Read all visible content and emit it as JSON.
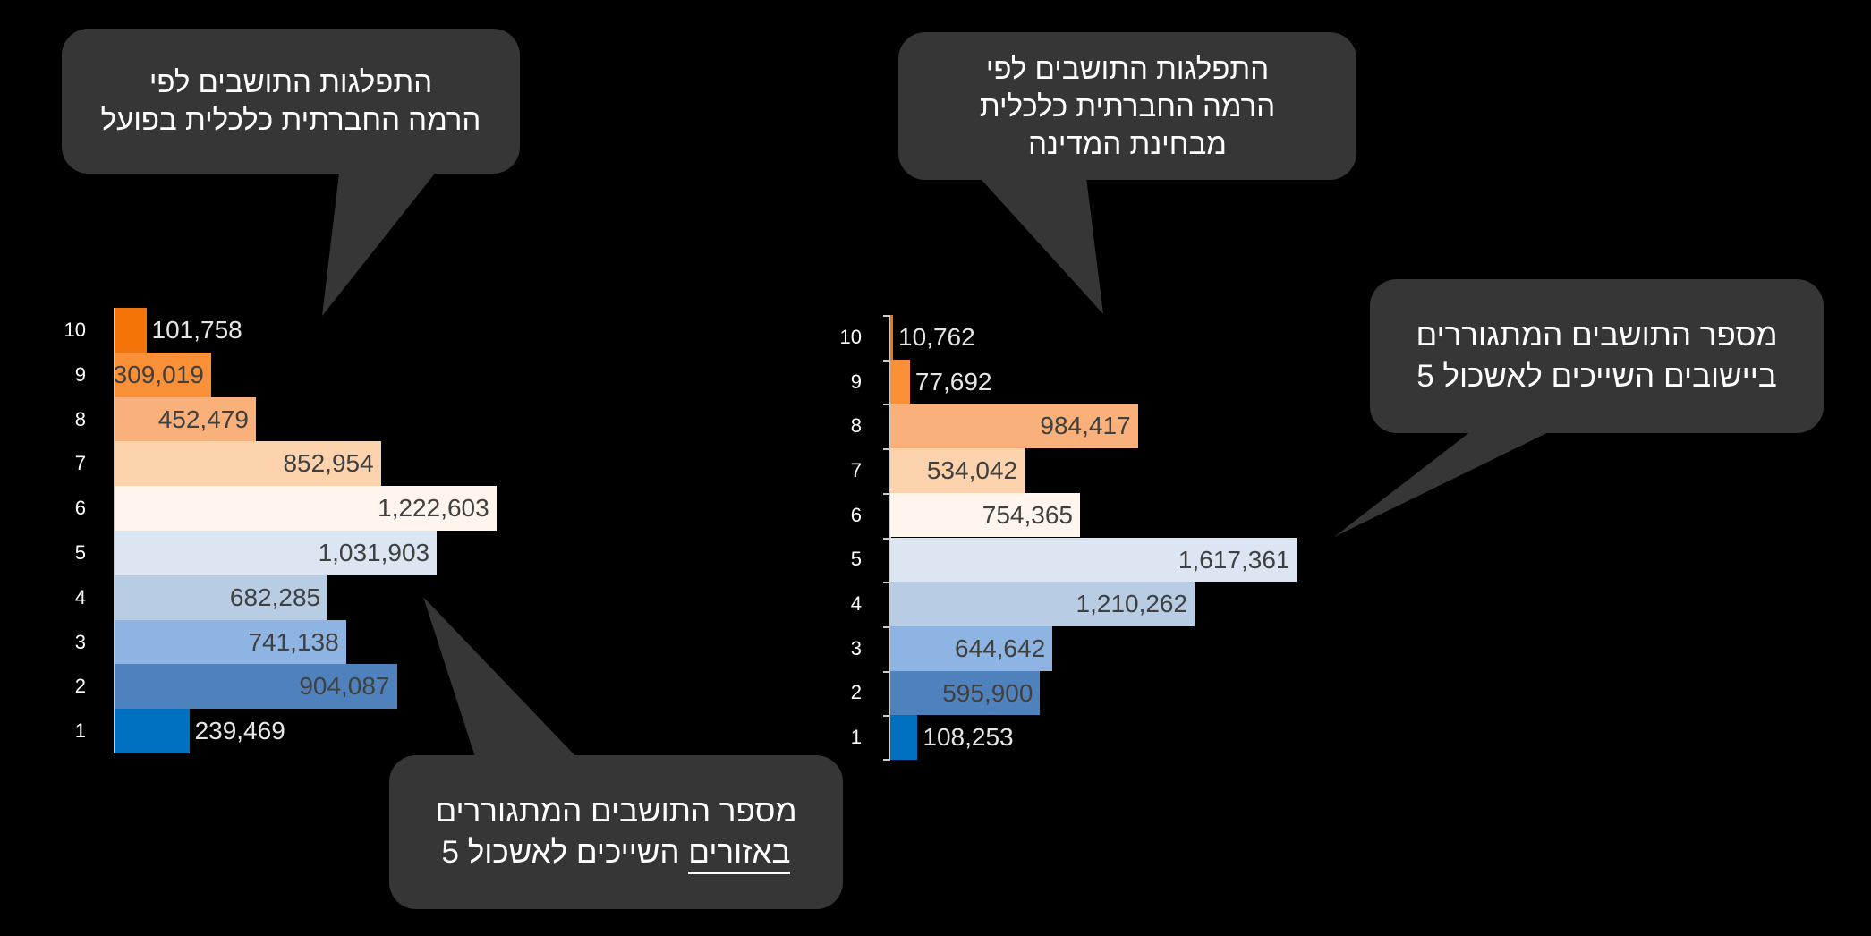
{
  "callouts": {
    "left_top": [
      "התפלגות התושבים לפי",
      "הרמה החברתית כלכלית בפועל"
    ],
    "right_top": [
      "התפלגות התושבים לפי",
      "הרמה החברתית כלכלית",
      "מבחינת המדינה"
    ],
    "left_bottom": {
      "line1": "מספר התושבים המתגוררים",
      "line2_underlined": "באזורים",
      "line2_rest": " השייכים לאשכול 5"
    },
    "right_mid": [
      "מספר התושבים המתגוררים",
      "ביישובים השייכים לאשכול 5"
    ]
  },
  "chart_data": [
    {
      "type": "bar",
      "orientation": "horizontal",
      "title": "התפלגות התושבים לפי הרמה החברתית כלכלית בפועל",
      "categories": [
        "10",
        "9",
        "8",
        "7",
        "6",
        "5",
        "4",
        "3",
        "2",
        "1"
      ],
      "values": [
        101758,
        309019,
        452479,
        852954,
        1222603,
        1031903,
        682285,
        741138,
        904087,
        239469
      ],
      "labels": [
        "101,758",
        "309,019",
        "452,479",
        "852,954",
        "1,222,603",
        "1,031,903",
        "682,285",
        "741,138",
        "904,087",
        "239,469"
      ],
      "colors": [
        "#f57409",
        "#fa9038",
        "#f9b07a",
        "#fdd3ad",
        "#fff5ec",
        "#dce6f2",
        "#b8cce4",
        "#8eb4e3",
        "#4f81bd",
        "#0070c0"
      ]
    },
    {
      "type": "bar",
      "orientation": "horizontal",
      "title": "התפלגות התושבים לפי הרמה החברתית כלכלית מבחינת המדינה",
      "categories": [
        "10",
        "9",
        "8",
        "7",
        "6",
        "5",
        "4",
        "3",
        "2",
        "1"
      ],
      "values": [
        10762,
        77692,
        984417,
        534042,
        754365,
        1617361,
        1210262,
        644642,
        595900,
        108253
      ],
      "labels": [
        "10,762",
        "77,692",
        "984,417",
        "534,042",
        "754,365",
        "1,617,361",
        "1,210,262",
        "644,642",
        "595,900",
        "108,253"
      ],
      "colors": [
        "#f57409",
        "#fa9038",
        "#f9b07a",
        "#fdd3ad",
        "#fff5ec",
        "#dce6f2",
        "#b8cce4",
        "#8eb4e3",
        "#4f81bd",
        "#0070c0"
      ]
    }
  ]
}
